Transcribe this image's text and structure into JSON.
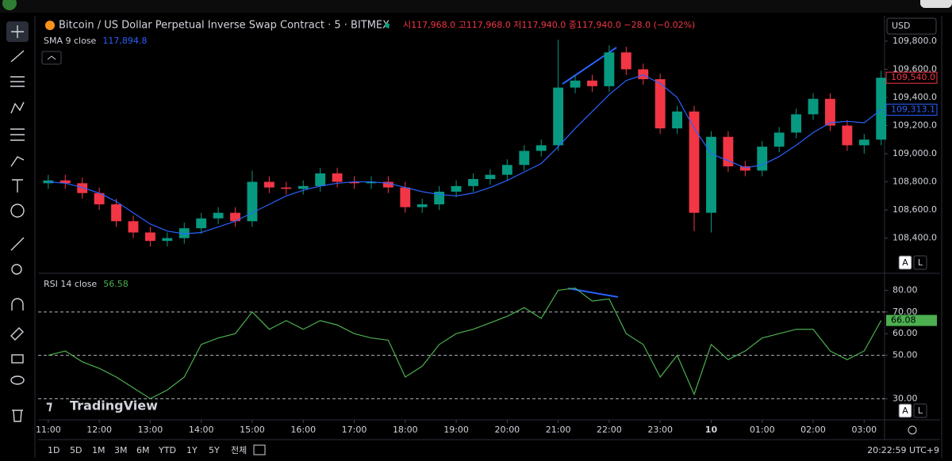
{
  "ui": {
    "symbol_title": "Bitcoin / US Dollar Perpetual Inverse Swap Contract · 5 · BITMEX",
    "ohlc_text": "시117,968.0 고117,968.0 저117,940.0 종117,940.0 −28.0 (−0.02%)",
    "currency": "USD",
    "scale_buttons": [
      "A",
      "L"
    ],
    "brand": "TradingView",
    "range_buttons": [
      "1D",
      "5D",
      "1M",
      "3M",
      "6M",
      "YTD",
      "1Y",
      "5Y",
      "전체"
    ],
    "clock": "20:22:59 UTC+9"
  },
  "chart_data": [
    {
      "type": "candlestick",
      "title": "Bitcoin / US Dollar Perpetual Inverse Swap Contract · 5 · BITMEX",
      "x": [
        "11:00",
        "11:20",
        "11:40",
        "12:00",
        "12:20",
        "12:40",
        "13:00",
        "13:20",
        "13:40",
        "14:00",
        "14:20",
        "14:40",
        "15:00",
        "15:20",
        "15:40",
        "16:00",
        "16:20",
        "16:40",
        "17:00",
        "17:20",
        "17:40",
        "18:00",
        "18:20",
        "18:40",
        "19:00",
        "19:20",
        "19:40",
        "20:00",
        "20:20",
        "20:40",
        "21:00",
        "21:20",
        "21:40",
        "22:00",
        "22:20",
        "22:40",
        "23:00",
        "23:20",
        "23:40",
        "00:00",
        "00:20",
        "00:40",
        "01:00",
        "01:20",
        "01:40",
        "02:00",
        "02:20",
        "02:40",
        "03:00",
        "03:20"
      ],
      "open": [
        108790,
        108810,
        108790,
        108720,
        108640,
        108520,
        108440,
        108380,
        108400,
        108470,
        108540,
        108580,
        108520,
        108800,
        108760,
        108750,
        108770,
        108860,
        108800,
        108790,
        108800,
        108760,
        108620,
        108640,
        108730,
        108770,
        108820,
        108850,
        108920,
        109020,
        109060,
        109470,
        109520,
        109480,
        109720,
        109600,
        109530,
        109180,
        109300,
        108580,
        109120,
        108910,
        108880,
        109050,
        109150,
        109280,
        109390,
        109200,
        109060,
        109100
      ],
      "high": [
        108850,
        108850,
        108830,
        108760,
        108680,
        108560,
        108480,
        108440,
        108510,
        108580,
        108620,
        108620,
        108880,
        108840,
        108800,
        108810,
        108900,
        108900,
        108840,
        108840,
        108840,
        108800,
        108680,
        108770,
        108810,
        108860,
        108890,
        108960,
        109060,
        109100,
        109810,
        109560,
        109560,
        109770,
        109760,
        109640,
        109570,
        109340,
        109340,
        109160,
        109160,
        108950,
        109090,
        109190,
        109320,
        109430,
        109430,
        109240,
        109140,
        109590
      ],
      "low": [
        108750,
        108750,
        108680,
        108600,
        108480,
        108400,
        108340,
        108340,
        108360,
        108430,
        108500,
        108480,
        108480,
        108720,
        108710,
        108710,
        108730,
        108760,
        108750,
        108750,
        108720,
        108580,
        108580,
        108600,
        108690,
        108730,
        108780,
        108810,
        108880,
        108980,
        109020,
        109430,
        109440,
        109440,
        109560,
        109490,
        109140,
        109140,
        108450,
        108440,
        108870,
        108840,
        108840,
        109010,
        109110,
        109240,
        109160,
        109020,
        109000,
        109060
      ],
      "close": [
        108810,
        108790,
        108720,
        108640,
        108520,
        108440,
        108380,
        108400,
        108470,
        108540,
        108580,
        108520,
        108800,
        108760,
        108750,
        108770,
        108860,
        108800,
        108790,
        108800,
        108760,
        108620,
        108640,
        108730,
        108770,
        108820,
        108850,
        108920,
        109020,
        109060,
        109470,
        109520,
        109480,
        109720,
        109600,
        109530,
        109180,
        109300,
        108580,
        109120,
        108910,
        108880,
        109050,
        109150,
        109280,
        109390,
        109200,
        109060,
        109100,
        109540
      ],
      "color_up": "#089981",
      "color_down": "#f23645",
      "series": [
        {
          "name": "SMA 9 close",
          "legend_value": "117,894.8",
          "color": "#2962ff",
          "values": [
            108800,
            108790,
            108760,
            108720,
            108660,
            108580,
            108500,
            108450,
            108430,
            108440,
            108480,
            108520,
            108580,
            108640,
            108700,
            108740,
            108770,
            108790,
            108800,
            108800,
            108790,
            108760,
            108730,
            108710,
            108700,
            108720,
            108760,
            108810,
            108870,
            108930,
            109050,
            109180,
            109300,
            109420,
            109520,
            109560,
            109500,
            109400,
            109180,
            109000,
            108950,
            108900,
            108920,
            108980,
            109060,
            109150,
            109220,
            109230,
            109220,
            109313.1
          ],
          "value_labels": [
            null,
            null,
            null,
            null,
            null,
            null,
            null,
            null,
            null,
            null,
            null,
            null,
            null,
            null,
            null,
            null,
            null,
            null,
            null,
            null,
            null,
            null,
            null,
            null,
            null,
            null,
            null,
            null,
            null,
            null,
            null,
            null,
            null,
            null,
            null,
            null,
            null,
            null,
            null,
            null,
            null,
            null,
            null,
            null,
            null,
            null,
            null,
            null,
            null,
            "109,313.1"
          ]
        }
      ],
      "close_labels": [
        null,
        null,
        null,
        null,
        null,
        null,
        null,
        null,
        null,
        null,
        null,
        null,
        null,
        null,
        null,
        null,
        null,
        null,
        null,
        null,
        null,
        null,
        null,
        null,
        null,
        null,
        null,
        null,
        null,
        null,
        null,
        null,
        null,
        null,
        null,
        null,
        null,
        null,
        null,
        null,
        null,
        null,
        null,
        null,
        null,
        null,
        null,
        null,
        null,
        "109,540.0"
      ],
      "xlim": [
        "10:48",
        "03:24"
      ],
      "xticks": [
        "11:00",
        "12:00",
        "13:00",
        "14:00",
        "15:00",
        "16:00",
        "17:00",
        "18:00",
        "19:00",
        "20:00",
        "21:00",
        "22:00",
        "23:00",
        {
          "value": "00:00",
          "label": "10"
        },
        "01:00",
        "02:00",
        "03:00"
      ],
      "ylim": [
        108150,
        109980
      ],
      "yticks": [
        {
          "value": 108400,
          "label": "108,400.0"
        },
        {
          "value": 108600,
          "label": "108,600.0"
        },
        {
          "value": 108800,
          "label": "108,800.0"
        },
        {
          "value": 109000,
          "label": "109,000.0"
        },
        {
          "value": 109200,
          "label": "109,200.0"
        },
        {
          "value": 109400,
          "label": "109,400.0"
        },
        {
          "value": 109600,
          "label": "109,600.0"
        },
        {
          "value": 109800,
          "label": "109,800.0"
        }
      ]
    },
    {
      "type": "line",
      "x": [
        "11:00",
        "11:20",
        "11:40",
        "12:00",
        "12:20",
        "12:40",
        "13:00",
        "13:20",
        "13:40",
        "14:00",
        "14:20",
        "14:40",
        "15:00",
        "15:20",
        "15:40",
        "16:00",
        "16:20",
        "16:40",
        "17:00",
        "17:20",
        "17:40",
        "18:00",
        "18:20",
        "18:40",
        "19:00",
        "19:20",
        "19:40",
        "20:00",
        "20:20",
        "20:40",
        "21:00",
        "21:20",
        "21:40",
        "22:00",
        "22:20",
        "22:40",
        "23:00",
        "23:20",
        "23:40",
        "00:00",
        "00:20",
        "00:40",
        "01:00",
        "01:20",
        "01:40",
        "02:00",
        "02:20",
        "02:40",
        "03:00",
        "03:20"
      ],
      "series": [
        {
          "name": "RSI 14 close",
          "legend_value": "56.58",
          "color": "#4caf50",
          "values": [
            50,
            52,
            47,
            44,
            40,
            35,
            30,
            34,
            40,
            55,
            58,
            60,
            70,
            62,
            66,
            62,
            66,
            64,
            60,
            58,
            57,
            40,
            45,
            55,
            60,
            62,
            65,
            68,
            72,
            67,
            80,
            81,
            75,
            76,
            60,
            55,
            40,
            50,
            32,
            55,
            48,
            52,
            58,
            60,
            62,
            62,
            52,
            48,
            52,
            66.08
          ],
          "value_labels": [
            null,
            null,
            null,
            null,
            null,
            null,
            null,
            null,
            null,
            null,
            null,
            null,
            null,
            null,
            null,
            null,
            null,
            null,
            null,
            null,
            null,
            null,
            null,
            null,
            null,
            null,
            null,
            null,
            null,
            null,
            null,
            null,
            null,
            null,
            null,
            null,
            null,
            null,
            null,
            null,
            null,
            null,
            null,
            null,
            null,
            null,
            null,
            null,
            null,
            "66.08"
          ]
        }
      ],
      "levels": [
        70,
        50,
        30
      ],
      "xlim": [
        "10:48",
        "03:24"
      ],
      "ylim": [
        21,
        86
      ],
      "yticks": [
        {
          "value": 30,
          "label": "30.00"
        },
        {
          "value": 50,
          "label": "50.00"
        },
        {
          "value": 60,
          "label": "60.00"
        },
        {
          "value": 70,
          "label": "70.00"
        },
        {
          "value": 80,
          "label": "80.00"
        }
      ]
    }
  ]
}
